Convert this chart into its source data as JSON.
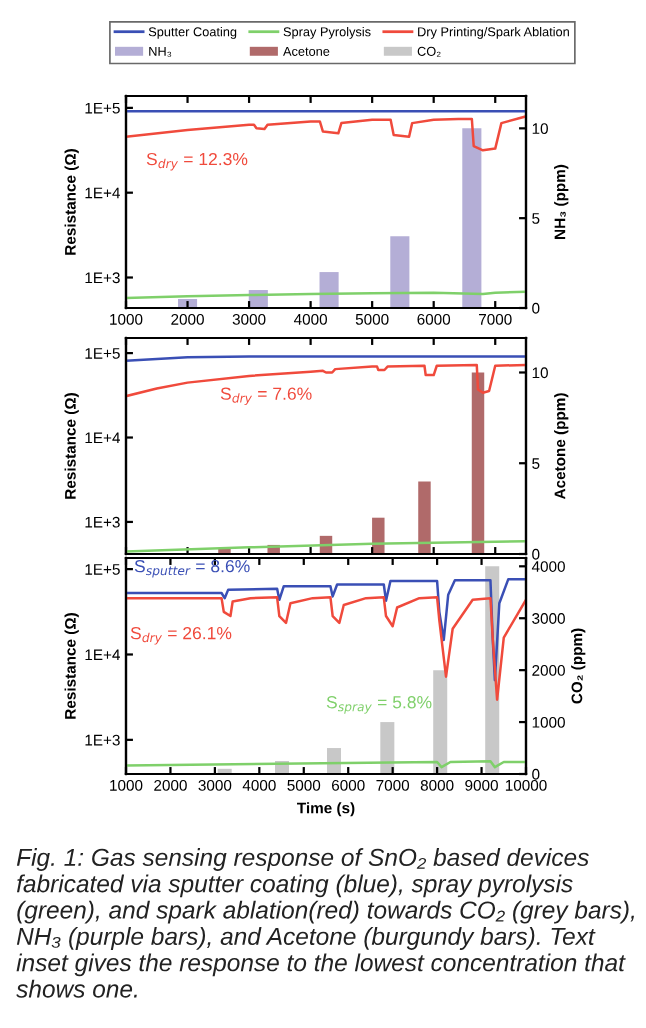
{
  "chart_data": [
    {
      "type": "line",
      "ylabel": "Resistance (Ω)",
      "y2label": "NH₃ (ppm)",
      "legend": "top",
      "log": "y",
      "xlim": [
        1000,
        7500
      ],
      "xticks": [
        1000,
        2000,
        3000,
        4000,
        5000,
        6000,
        7000
      ],
      "ylim": [
        437,
        138000
      ],
      "yticks": [
        {
          "value": 1000,
          "label": "1E+3"
        },
        {
          "value": 10000,
          "label": "1E+4"
        },
        {
          "value": 100000,
          "label": "1E+5"
        }
      ],
      "y2lim": [
        0,
        11.8
      ],
      "y2ticks": [
        0,
        5,
        10
      ],
      "series": [
        {
          "name": "NH₃",
          "type": "bar",
          "axis": "y2",
          "color": "#b4aed6",
          "x": [
            2000,
            3150,
            4300,
            5450,
            6620
          ],
          "values": [
            0.5,
            1,
            2,
            4,
            10
          ]
        },
        {
          "name": "Sputter Coating",
          "color": "#3a4fb5",
          "x": [
            1000,
            7500
          ],
          "values": [
            91000,
            91000
          ]
        },
        {
          "name": "Spray Pyrolysis",
          "color": "#7fd06a",
          "x": [
            1000,
            2000,
            3000,
            4000,
            5000,
            6000,
            6800,
            7000,
            7500
          ],
          "values": [
            575,
            600,
            620,
            640,
            650,
            660,
            640,
            660,
            680
          ]
        },
        {
          "name": "Dry Printing/Spark Ablation",
          "color": "#f04a3c",
          "x": [
            1000,
            2000,
            3000,
            3080,
            3120,
            3250,
            3300,
            4000,
            4150,
            4200,
            4450,
            4500,
            5000,
            5300,
            5350,
            5600,
            5650,
            6000,
            6400,
            6620,
            6650,
            6800,
            7000,
            7100,
            7500
          ],
          "values": [
            45700,
            55000,
            63100,
            63100,
            57500,
            56200,
            63100,
            69200,
            69200,
            52500,
            50100,
            66100,
            72400,
            72400,
            47900,
            45700,
            66100,
            72400,
            74100,
            74100,
            35500,
            31600,
            33100,
            66100,
            79400
          ]
        }
      ],
      "annotations": [
        "S$_{dry}$ = 12.3%"
      ]
    },
    {
      "type": "line",
      "ylabel": "Resistance (Ω)",
      "y2label": "Acetone (ppm)",
      "log": "y",
      "tick_labels": "y",
      "xlim": [
        1000,
        7500
      ],
      "xticks": [
        1000,
        2000,
        3000,
        4000,
        5000,
        6000,
        7000
      ],
      "ylim": [
        417,
        151000
      ],
      "yticks": [
        {
          "value": 1000,
          "label": "1E+3"
        },
        {
          "value": 10000,
          "label": "1E+4"
        },
        {
          "value": 100000,
          "label": "1E+5"
        }
      ],
      "y2lim": [
        0,
        11.9
      ],
      "y2ticks": [
        0,
        5,
        10
      ],
      "series": [
        {
          "name": "Acetone",
          "type": "bar",
          "axis": "y2",
          "color": "#b06a6a",
          "x": [
            2600,
            3400,
            4250,
            5100,
            5850,
            6720
          ],
          "values": [
            0.3,
            0.5,
            1,
            2,
            4,
            10
          ]
        },
        {
          "color": "#3a4fb5",
          "x": [
            1000,
            2000,
            3000,
            7500
          ],
          "values": [
            81300,
            89100,
            91200,
            91200
          ]
        },
        {
          "color": "#7fd06a",
          "x": [
            1000,
            3000,
            5000,
            7500
          ],
          "values": [
            447,
            500,
            550,
            590
          ]
        },
        {
          "color": "#f04a3c",
          "x": [
            1000,
            1500,
            2000,
            3000,
            4000,
            4200,
            4250,
            4350,
            4400,
            5000,
            5080,
            5100,
            5200,
            5250,
            5850,
            5870,
            6000,
            6050,
            6700,
            6720,
            6800,
            6900,
            7000,
            7500
          ],
          "values": [
            30900,
            38000,
            44700,
            53700,
            60300,
            61700,
            58900,
            58900,
            64600,
            69200,
            69200,
            63100,
            63100,
            69200,
            70800,
            55000,
            55000,
            70800,
            72400,
            37200,
            33900,
            35500,
            70800,
            72400
          ]
        }
      ],
      "annotations": [
        "S$_{dry}$ = 7.6%"
      ]
    },
    {
      "type": "line",
      "xlabel": "Time (s)",
      "ylabel": "Resistance (Ω)",
      "y2label": "CO₂ (ppm)",
      "log": "y",
      "xlim": [
        1000,
        10000
      ],
      "xticks": [
        1000,
        2000,
        3000,
        4000,
        5000,
        6000,
        7000,
        8000,
        9000,
        10000
      ],
      "ylim": [
        398,
        135000
      ],
      "yticks": [
        {
          "value": 1000,
          "label": "1E+3"
        },
        {
          "value": 10000,
          "label": "1E+4"
        },
        {
          "value": 100000,
          "label": "1E+5"
        }
      ],
      "y2lim": [
        0,
        4160
      ],
      "y2ticks": [
        0,
        1000,
        2000,
        3000,
        4000
      ],
      "series": [
        {
          "name": "CO₂",
          "type": "bar",
          "axis": "y2",
          "color": "#c8c8c8",
          "x": [
            3220,
            4510,
            5680,
            6880,
            8070,
            9240
          ],
          "values": [
            100,
            250,
            500,
            1000,
            2000,
            4000
          ]
        },
        {
          "color": "#3a4fb5",
          "x": [
            1000,
            3150,
            3220,
            3300,
            4400,
            4450,
            4550,
            5600,
            5650,
            5750,
            6800,
            6850,
            6950,
            8000,
            8050,
            8150,
            8250,
            8400,
            9200,
            9250,
            9300,
            9400,
            9600,
            10000
          ],
          "values": [
            52500,
            52500,
            45700,
            57500,
            58900,
            43700,
            63100,
            63100,
            47900,
            66100,
            66100,
            42700,
            72400,
            72400,
            31600,
            14800,
            50100,
            74100,
            74100,
            15800,
            5010,
            39800,
            75900,
            75900
          ]
        },
        {
          "color": "#f04a3c",
          "x": [
            1000,
            3150,
            3200,
            3350,
            3400,
            3800,
            4400,
            4450,
            4600,
            4700,
            5200,
            5600,
            5650,
            5800,
            5900,
            6400,
            6800,
            6850,
            7000,
            7100,
            7600,
            8000,
            8050,
            8200,
            8350,
            8800,
            9200,
            9250,
            9350,
            9500,
            10000
          ],
          "values": [
            45700,
            45700,
            31600,
            28200,
            41700,
            45700,
            46800,
            28200,
            23400,
            39800,
            45700,
            46800,
            28200,
            23400,
            38000,
            45700,
            46800,
            28200,
            21400,
            35500,
            45700,
            46800,
            25100,
            5500,
            20000,
            43700,
            45700,
            15800,
            2950,
            15800,
            43700
          ]
        },
        {
          "color": "#7fd06a",
          "x": [
            1000,
            8000,
            8100,
            8300,
            9200,
            9300,
            9500,
            10000
          ],
          "values": [
            501,
            550,
            479,
            550,
            562,
            479,
            550,
            550
          ]
        }
      ],
      "annotations": [
        "S$_{sputter}$ = 8.6%",
        "S$_{dry}$ = 26.1%",
        "S$_{spray}$ = 5.8%",
        "Fig. 1: Gas sensing response of SnO₂ based devices fabricated via sputter coating (blue), spray pyrolysis (green), and spark ablation(red) towards CO₂ (grey bars), NH₃ (purple bars), and Acetone (burgundy bars). Text inset gives the response to the lowest concentration that shows one."
      ]
    }
  ]
}
